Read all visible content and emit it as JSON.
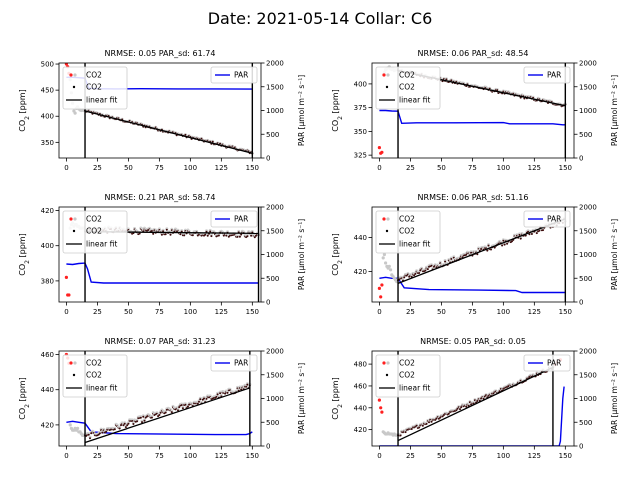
{
  "figure": {
    "title": "Date: 2021-05-14 Collar: C6"
  },
  "chart_data": [
    {
      "type": "scatter",
      "title": "NRMSE: 0.05 PAR_sd: 61.74",
      "xlabel": "",
      "ylabel": "CO$_2$ [ppm]",
      "ylabel_right": "PAR [μmol m⁻² s⁻¹]",
      "xlim": [
        -6,
        157
      ],
      "ylim": [
        320,
        502
      ],
      "y2lim": [
        0,
        2000
      ],
      "xticks": [
        0,
        25,
        50,
        75,
        100,
        125,
        150
      ],
      "yticks": [
        350,
        400,
        450,
        500
      ],
      "y2ticks": [
        0,
        500,
        1000,
        1500,
        2000
      ],
      "vlines": [
        15,
        150
      ],
      "legend_left": [
        "CO2",
        "CO2",
        "linear fit"
      ],
      "legend_right": [
        "PAR"
      ],
      "excluded_points": [
        [
          0,
          500
        ],
        [
          1,
          495
        ],
        [
          2,
          482
        ],
        [
          3,
          470
        ],
        [
          4,
          445
        ],
        [
          5,
          425
        ],
        [
          6,
          410
        ],
        [
          7,
          406
        ],
        [
          8,
          415
        ],
        [
          9,
          418
        ],
        [
          10,
          414
        ],
        [
          11,
          412
        ],
        [
          12,
          411
        ],
        [
          13,
          412
        ],
        [
          14,
          411
        ]
      ],
      "co2_start": 410,
      "co2_end": 330,
      "co2_noise": 2.5,
      "fit": [
        [
          15,
          410
        ],
        [
          150,
          329
        ]
      ],
      "par": [
        [
          0,
          1700
        ],
        [
          5,
          1700
        ],
        [
          10,
          1690
        ],
        [
          15,
          1680
        ],
        [
          18,
          1470
        ],
        [
          25,
          1460
        ],
        [
          40,
          1455
        ],
        [
          60,
          1460
        ],
        [
          90,
          1455
        ],
        [
          120,
          1455
        ],
        [
          148,
          1450
        ],
        [
          150,
          1450
        ]
      ]
    },
    {
      "type": "scatter",
      "title": "NRMSE: 0.06 PAR_sd: 48.54",
      "xlabel": "",
      "ylabel": "CO$_2$ [ppm]",
      "ylabel_right": "PAR [μmol m⁻² s⁻¹]",
      "xlim": [
        -6,
        157
      ],
      "ylim": [
        322,
        422
      ],
      "y2lim": [
        0,
        2000
      ],
      "xticks": [
        0,
        25,
        50,
        75,
        100,
        125,
        150
      ],
      "yticks": [
        325,
        350,
        375,
        400
      ],
      "y2ticks": [
        0,
        500,
        1000,
        1500,
        2000
      ],
      "vlines": [
        15,
        150
      ],
      "legend_left": [
        "CO2",
        "CO2",
        "linear fit"
      ],
      "legend_right": [
        "PAR"
      ],
      "excluded_points": [
        [
          0,
          333
        ],
        [
          1,
          327
        ],
        [
          2,
          328
        ],
        [
          3,
          410
        ],
        [
          4,
          412
        ],
        [
          5,
          415
        ],
        [
          6,
          416
        ],
        [
          7,
          417
        ],
        [
          8,
          418
        ],
        [
          9,
          416
        ],
        [
          10,
          415
        ],
        [
          11,
          416
        ],
        [
          12,
          414
        ],
        [
          13,
          415
        ],
        [
          14,
          415
        ]
      ],
      "co2_start": 414,
      "co2_end": 377,
      "co2_noise": 1.5,
      "fit": [
        [
          15,
          414
        ],
        [
          150,
          377
        ]
      ],
      "par": [
        [
          0,
          1000
        ],
        [
          5,
          1000
        ],
        [
          10,
          990
        ],
        [
          15,
          985
        ],
        [
          18,
          730
        ],
        [
          30,
          740
        ],
        [
          60,
          740
        ],
        [
          100,
          745
        ],
        [
          105,
          720
        ],
        [
          120,
          720
        ],
        [
          140,
          720
        ],
        [
          148,
          700
        ],
        [
          150,
          700
        ]
      ]
    },
    {
      "type": "scatter",
      "title": "NRMSE: 0.21 PAR_sd: 58.74",
      "xlabel": "",
      "ylabel": "CO$_2$ [ppm]",
      "ylabel_right": "PAR [μmol m⁻² s⁻¹]",
      "xlim": [
        -6,
        157
      ],
      "ylim": [
        368,
        422
      ],
      "y2lim": [
        0,
        2000
      ],
      "xticks": [
        0,
        25,
        50,
        75,
        100,
        125,
        150
      ],
      "yticks": [
        380,
        400,
        420
      ],
      "y2ticks": [
        0,
        500,
        1000,
        1500,
        2000
      ],
      "vlines": [
        15,
        155
      ],
      "legend_left": [
        "CO2",
        "CO2",
        "linear fit"
      ],
      "legend_right": [
        "PAR"
      ],
      "excluded_points": [
        [
          0,
          382
        ],
        [
          1,
          372
        ],
        [
          2,
          372
        ],
        [
          3,
          410
        ],
        [
          4,
          412
        ],
        [
          5,
          413
        ],
        [
          6,
          411
        ],
        [
          7,
          412
        ],
        [
          8,
          412
        ],
        [
          9,
          411
        ],
        [
          10,
          411
        ],
        [
          11,
          410
        ],
        [
          12,
          410
        ],
        [
          13,
          410
        ],
        [
          14,
          410
        ]
      ],
      "co2_start": 409,
      "co2_end": 406,
      "co2_noise": 1.5,
      "fit": [
        [
          15,
          408
        ],
        [
          155,
          407
        ]
      ],
      "par": [
        [
          0,
          800
        ],
        [
          5,
          790
        ],
        [
          10,
          810
        ],
        [
          15,
          820
        ],
        [
          17,
          700
        ],
        [
          20,
          420
        ],
        [
          30,
          400
        ],
        [
          60,
          400
        ],
        [
          100,
          400
        ],
        [
          130,
          400
        ],
        [
          155,
          400
        ]
      ]
    },
    {
      "type": "scatter",
      "title": "NRMSE: 0.06 PAR_sd: 51.16",
      "xlabel": "",
      "ylabel": "CO$_2$ [ppm]",
      "ylabel_right": "PAR [μmol m⁻² s⁻¹]",
      "xlim": [
        -6,
        157
      ],
      "ylim": [
        402,
        458
      ],
      "y2lim": [
        0,
        2000
      ],
      "xticks": [
        0,
        25,
        50,
        75,
        100,
        125,
        150
      ],
      "yticks": [
        420,
        440
      ],
      "y2ticks": [
        0,
        500,
        1000,
        1500,
        2000
      ],
      "vlines": [
        15,
        150
      ],
      "legend_left": [
        "CO2",
        "CO2",
        "linear fit"
      ],
      "legend_right": [
        "PAR"
      ],
      "excluded_points": [
        [
          0,
          410
        ],
        [
          1,
          405
        ],
        [
          2,
          412
        ],
        [
          3,
          428
        ],
        [
          4,
          430
        ],
        [
          5,
          425
        ],
        [
          6,
          423
        ],
        [
          7,
          422
        ],
        [
          8,
          423
        ],
        [
          9,
          421
        ],
        [
          10,
          418
        ],
        [
          11,
          417
        ],
        [
          12,
          416
        ],
        [
          13,
          415
        ],
        [
          14,
          414
        ]
      ],
      "co2_start": 415,
      "co2_end": 450,
      "co2_noise": 1.5,
      "fit": [
        [
          15,
          413
        ],
        [
          150,
          451
        ]
      ],
      "par": [
        [
          0,
          500
        ],
        [
          5,
          520
        ],
        [
          10,
          500
        ],
        [
          15,
          500
        ],
        [
          20,
          300
        ],
        [
          40,
          260
        ],
        [
          80,
          250
        ],
        [
          110,
          240
        ],
        [
          115,
          200
        ],
        [
          150,
          200
        ]
      ]
    },
    {
      "type": "scatter",
      "title": "NRMSE: 0.07 PAR_sd: 31.23",
      "xlabel": "",
      "ylabel": "CO$_2$ [ppm]",
      "ylabel_right": "PAR [μmol m⁻² s⁻¹]",
      "xlim": [
        -6,
        157
      ],
      "ylim": [
        408,
        462
      ],
      "y2lim": [
        0,
        2000
      ],
      "xticks": [
        0,
        25,
        50,
        75,
        100,
        125,
        150
      ],
      "yticks": [
        420,
        440,
        460
      ],
      "y2ticks": [
        0,
        500,
        1000,
        1500,
        2000
      ],
      "vlines": [
        15,
        148
      ],
      "legend_left": [
        "CO2",
        "CO2",
        "linear fit"
      ],
      "legend_right": [
        "PAR"
      ],
      "excluded_points": [
        [
          0,
          460
        ],
        [
          1,
          458
        ],
        [
          2,
          455
        ],
        [
          3,
          420
        ],
        [
          4,
          418
        ],
        [
          5,
          417
        ],
        [
          6,
          417
        ],
        [
          7,
          418
        ],
        [
          8,
          417
        ],
        [
          9,
          418
        ],
        [
          10,
          416
        ],
        [
          11,
          416
        ],
        [
          12,
          415
        ],
        [
          13,
          414
        ],
        [
          14,
          414
        ]
      ],
      "co2_start": 413,
      "co2_end": 442,
      "co2_noise": 1.5,
      "fit": [
        [
          15,
          410
        ],
        [
          148,
          441
        ]
      ],
      "par": [
        [
          0,
          500
        ],
        [
          5,
          520
        ],
        [
          10,
          500
        ],
        [
          15,
          480
        ],
        [
          20,
          300
        ],
        [
          40,
          260
        ],
        [
          80,
          250
        ],
        [
          120,
          240
        ],
        [
          145,
          240
        ],
        [
          148,
          260
        ],
        [
          150,
          300
        ]
      ]
    },
    {
      "type": "scatter",
      "title": "NRMSE: 0.05 PAR_sd: 0.05",
      "xlabel": "",
      "ylabel": "CO$_2$ [ppm]",
      "ylabel_right": "PAR [μmol m⁻² s⁻¹]",
      "xlim": [
        -6,
        157
      ],
      "ylim": [
        405,
        492
      ],
      "y2lim": [
        0,
        2000
      ],
      "xticks": [
        0,
        25,
        50,
        75,
        100,
        125,
        150
      ],
      "yticks": [
        420,
        440,
        460,
        480
      ],
      "y2ticks": [
        0,
        500,
        1000,
        1500,
        2000
      ],
      "vlines": [
        15,
        140
      ],
      "legend_left": [
        "CO2",
        "CO2",
        "linear fit"
      ],
      "legend_right": [
        "PAR"
      ],
      "excluded_points": [
        [
          0,
          447
        ],
        [
          1,
          440
        ],
        [
          2,
          436
        ],
        [
          3,
          418
        ],
        [
          4,
          417
        ],
        [
          5,
          416
        ],
        [
          6,
          416
        ],
        [
          7,
          417
        ],
        [
          8,
          416
        ],
        [
          9,
          416
        ],
        [
          10,
          416
        ],
        [
          11,
          415
        ],
        [
          12,
          416
        ],
        [
          13,
          415
        ],
        [
          14,
          415
        ],
        [
          141,
          478
        ],
        [
          142,
          480
        ],
        [
          143,
          481
        ],
        [
          144,
          482
        ],
        [
          145,
          483
        ],
        [
          146,
          484
        ]
      ],
      "co2_start": 415,
      "co2_end": 477,
      "co2_noise": 1.5,
      "fit": [
        [
          15,
          410
        ],
        [
          140,
          477
        ]
      ],
      "par": [
        [
          0,
          0
        ],
        [
          140,
          0
        ],
        [
          145,
          0
        ],
        [
          146,
          100
        ],
        [
          148,
          1000
        ],
        [
          149,
          1250
        ]
      ]
    }
  ]
}
